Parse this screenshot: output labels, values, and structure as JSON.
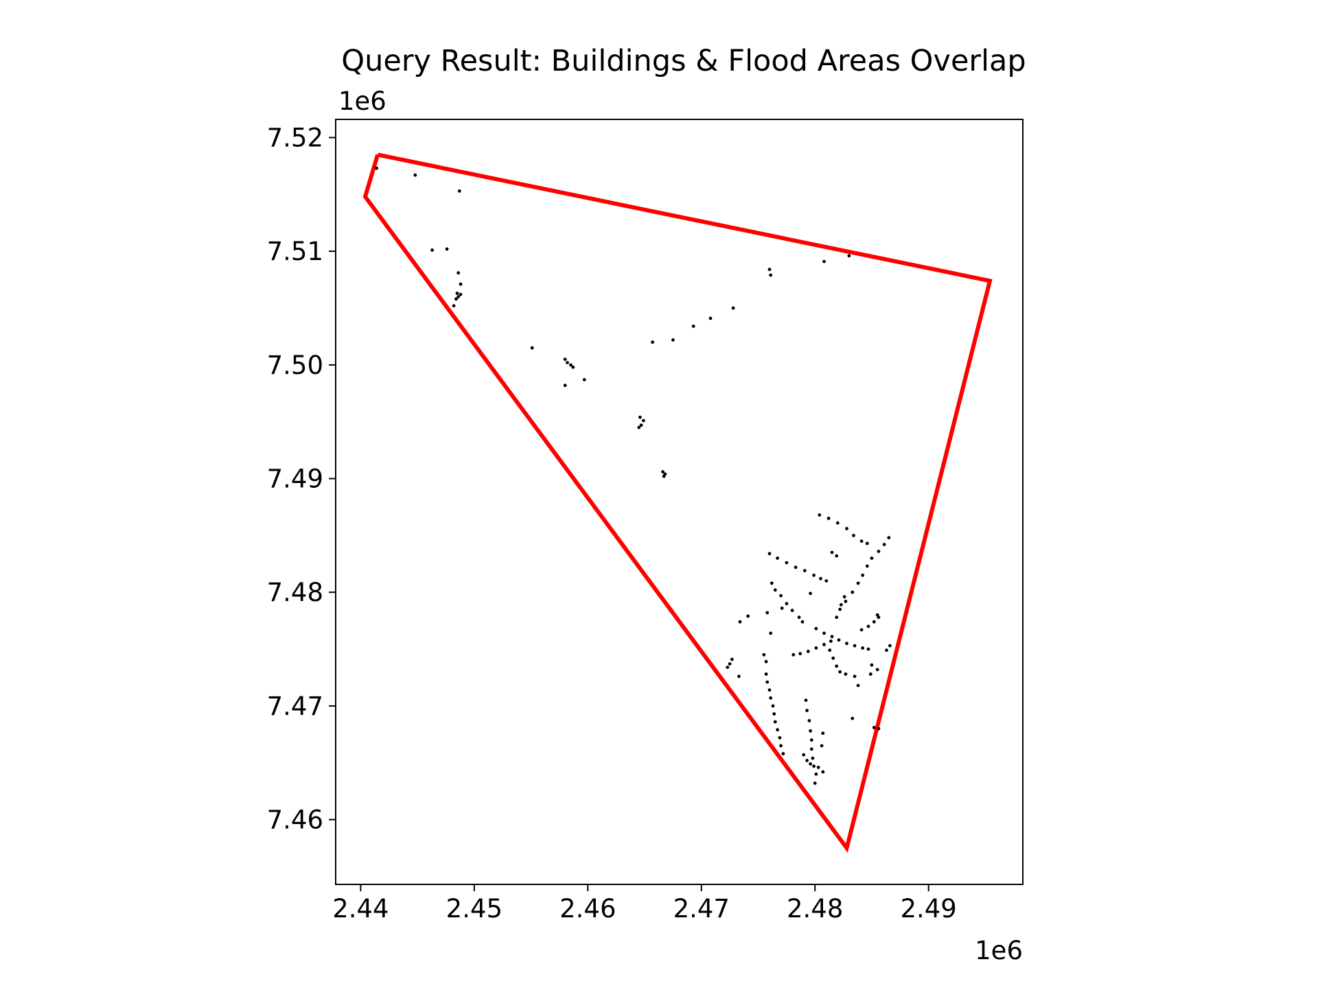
{
  "chart_data": {
    "type": "scatter",
    "title": "Query Result: Buildings & Flood Areas Overlap",
    "xlabel": "",
    "ylabel": "",
    "x_offset_label": "1e6",
    "y_offset_label": "1e6",
    "xlim": [
      2437800,
      2498300
    ],
    "ylim": [
      7454300,
      7521600
    ],
    "xticks": [
      2440000,
      2450000,
      2460000,
      2470000,
      2480000,
      2490000
    ],
    "xtick_labels": [
      "2.44",
      "2.45",
      "2.46",
      "2.47",
      "2.48",
      "2.49"
    ],
    "yticks": [
      7460000,
      7470000,
      7480000,
      7490000,
      7500000,
      7510000,
      7520000
    ],
    "ytick_labels": [
      "7.46",
      "7.47",
      "7.48",
      "7.49",
      "7.50",
      "7.51",
      "7.52"
    ],
    "grid": false,
    "legend": "none",
    "colors": {
      "polygon": "#ff0000",
      "points": "#000000"
    },
    "series": [
      {
        "type": "polygon",
        "points": [
          [
            2441500,
            7518500
          ],
          [
            2495400,
            7507400
          ],
          [
            2482800,
            7457500
          ],
          [
            2440400,
            7514800
          ],
          [
            2441500,
            7518500
          ]
        ]
      },
      {
        "type": "scatter",
        "points": [
          [
            2441400,
            7517300
          ],
          [
            2444800,
            7516700
          ],
          [
            2448700,
            7515300
          ],
          [
            2446300,
            7510100
          ],
          [
            2447600,
            7510200
          ],
          [
            2448600,
            7508100
          ],
          [
            2448800,
            7507100
          ],
          [
            2448500,
            7506300
          ],
          [
            2448800,
            7506200
          ],
          [
            2448600,
            7506000
          ],
          [
            2448400,
            7505800
          ],
          [
            2448200,
            7505200
          ],
          [
            2476000,
            7508400
          ],
          [
            2476100,
            7507900
          ],
          [
            2480800,
            7509100
          ],
          [
            2483000,
            7509600
          ],
          [
            2472800,
            7505000
          ],
          [
            2470800,
            7504100
          ],
          [
            2469300,
            7503400
          ],
          [
            2467500,
            7502200
          ],
          [
            2465700,
            7502000
          ],
          [
            2455100,
            7501500
          ],
          [
            2458000,
            7500500
          ],
          [
            2458200,
            7500200
          ],
          [
            2458500,
            7500000
          ],
          [
            2458700,
            7499800
          ],
          [
            2459700,
            7498700
          ],
          [
            2458000,
            7498200
          ],
          [
            2464600,
            7495400
          ],
          [
            2464900,
            7495100
          ],
          [
            2464700,
            7494700
          ],
          [
            2464500,
            7494500
          ],
          [
            2466600,
            7490600
          ],
          [
            2466800,
            7490400
          ],
          [
            2466700,
            7490200
          ],
          [
            2480400,
            7486800
          ],
          [
            2481200,
            7486500
          ],
          [
            2482000,
            7486100
          ],
          [
            2482800,
            7485600
          ],
          [
            2483400,
            7485000
          ],
          [
            2484100,
            7484500
          ],
          [
            2484600,
            7484300
          ],
          [
            2481500,
            7483500
          ],
          [
            2481900,
            7483200
          ],
          [
            2476000,
            7483400
          ],
          [
            2476700,
            7483000
          ],
          [
            2477500,
            7482600
          ],
          [
            2478300,
            7482200
          ],
          [
            2479100,
            7481900
          ],
          [
            2479900,
            7481500
          ],
          [
            2480500,
            7481200
          ],
          [
            2481000,
            7481000
          ],
          [
            2486500,
            7484800
          ],
          [
            2486100,
            7484200
          ],
          [
            2485600,
            7483600
          ],
          [
            2485000,
            7483000
          ],
          [
            2484600,
            7482300
          ],
          [
            2484200,
            7481500
          ],
          [
            2483800,
            7480800
          ],
          [
            2483300,
            7480000
          ],
          [
            2482700,
            7479200
          ],
          [
            2482200,
            7478500
          ],
          [
            2481900,
            7477800
          ],
          [
            2476200,
            7480800
          ],
          [
            2476500,
            7480200
          ],
          [
            2477000,
            7479700
          ],
          [
            2477500,
            7479000
          ],
          [
            2478000,
            7478400
          ],
          [
            2478600,
            7477800
          ],
          [
            2479600,
            7479900
          ],
          [
            2482600,
            7479600
          ],
          [
            2482300,
            7478900
          ],
          [
            2475800,
            7478200
          ],
          [
            2474100,
            7477900
          ],
          [
            2473400,
            7477400
          ],
          [
            2476100,
            7476400
          ],
          [
            2477100,
            7478600
          ],
          [
            2478900,
            7477400
          ],
          [
            2480100,
            7476800
          ],
          [
            2480800,
            7476400
          ],
          [
            2481500,
            7476100
          ],
          [
            2482100,
            7475800
          ],
          [
            2482800,
            7475500
          ],
          [
            2483500,
            7475300
          ],
          [
            2484200,
            7475100
          ],
          [
            2484700,
            7475000
          ],
          [
            2478100,
            7474500
          ],
          [
            2478700,
            7474600
          ],
          [
            2479400,
            7474800
          ],
          [
            2480100,
            7475100
          ],
          [
            2480800,
            7475400
          ],
          [
            2481400,
            7475700
          ],
          [
            2481300,
            7474900
          ],
          [
            2481600,
            7474200
          ],
          [
            2481900,
            7473500
          ],
          [
            2482200,
            7473000
          ],
          [
            2482700,
            7472800
          ],
          [
            2483500,
            7472600
          ],
          [
            2483800,
            7471800
          ],
          [
            2484100,
            7476700
          ],
          [
            2484700,
            7477000
          ],
          [
            2485200,
            7477400
          ],
          [
            2485600,
            7477800
          ],
          [
            2485000,
            7473600
          ],
          [
            2485500,
            7473200
          ],
          [
            2486300,
            7474900
          ],
          [
            2486600,
            7475300
          ],
          [
            2485500,
            7478000
          ],
          [
            2484900,
            7472800
          ],
          [
            2472700,
            7474100
          ],
          [
            2472300,
            7473400
          ],
          [
            2473300,
            7472600
          ],
          [
            2472500,
            7473700
          ],
          [
            2475500,
            7474500
          ],
          [
            2475700,
            7473900
          ],
          [
            2475700,
            7472800
          ],
          [
            2475800,
            7472100
          ],
          [
            2476000,
            7471400
          ],
          [
            2476100,
            7470700
          ],
          [
            2476300,
            7470000
          ],
          [
            2476400,
            7469300
          ],
          [
            2476500,
            7468600
          ],
          [
            2476700,
            7467900
          ],
          [
            2476900,
            7467200
          ],
          [
            2477000,
            7466500
          ],
          [
            2477200,
            7465800
          ],
          [
            2479200,
            7470500
          ],
          [
            2479300,
            7469600
          ],
          [
            2479500,
            7468700
          ],
          [
            2479600,
            7467800
          ],
          [
            2479700,
            7467000
          ],
          [
            2479700,
            7466200
          ],
          [
            2479800,
            7465400
          ],
          [
            2479900,
            7464700
          ],
          [
            2480100,
            7464000
          ],
          [
            2480000,
            7463200
          ],
          [
            2479000,
            7465700
          ],
          [
            2479300,
            7465200
          ],
          [
            2479600,
            7464900
          ],
          [
            2480300,
            7464600
          ],
          [
            2480700,
            7464200
          ],
          [
            2480600,
            7466500
          ],
          [
            2480700,
            7467600
          ],
          [
            2483300,
            7468900
          ],
          [
            2485200,
            7468100
          ],
          [
            2485600,
            7468000
          ]
        ]
      }
    ]
  }
}
